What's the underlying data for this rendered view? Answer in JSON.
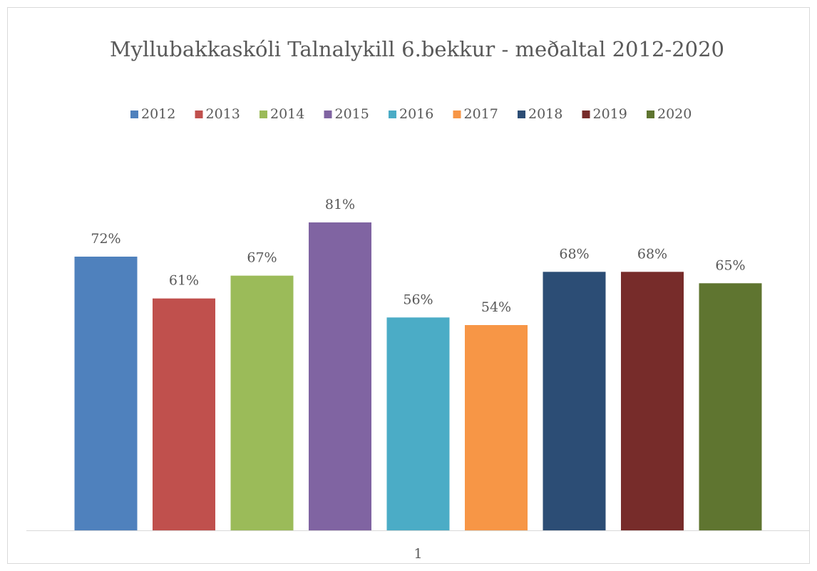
{
  "chart_data": {
    "type": "bar",
    "title": "Myllubakkaskóli Talnalykill 6.bekkur - meðaltal 2012-2020",
    "categories": [
      "1"
    ],
    "ylim": [
      0,
      90
    ],
    "grid": false,
    "legend": "top",
    "series": [
      {
        "name": "2012",
        "color": "#4f81bd",
        "values": [
          72
        ],
        "value_labels": [
          "72%"
        ]
      },
      {
        "name": "2013",
        "color": "#c0504d",
        "values": [
          61
        ],
        "value_labels": [
          "61%"
        ]
      },
      {
        "name": "2014",
        "color": "#9bbb59",
        "values": [
          67
        ],
        "value_labels": [
          "67%"
        ]
      },
      {
        "name": "2015",
        "color": "#8064a2",
        "values": [
          81
        ],
        "value_labels": [
          "81%"
        ]
      },
      {
        "name": "2016",
        "color": "#4bacc6",
        "values": [
          56
        ],
        "value_labels": [
          "56%"
        ]
      },
      {
        "name": "2017",
        "color": "#f79646",
        "values": [
          54
        ],
        "value_labels": [
          "54%"
        ]
      },
      {
        "name": "2018",
        "color": "#2c4d75",
        "values": [
          68
        ],
        "value_labels": [
          "68%"
        ]
      },
      {
        "name": "2019",
        "color": "#772c2a",
        "values": [
          68
        ],
        "value_labels": [
          "68%"
        ]
      },
      {
        "name": "2020",
        "color": "#5f7530",
        "values": [
          65
        ],
        "value_labels": [
          "65%"
        ]
      }
    ]
  }
}
